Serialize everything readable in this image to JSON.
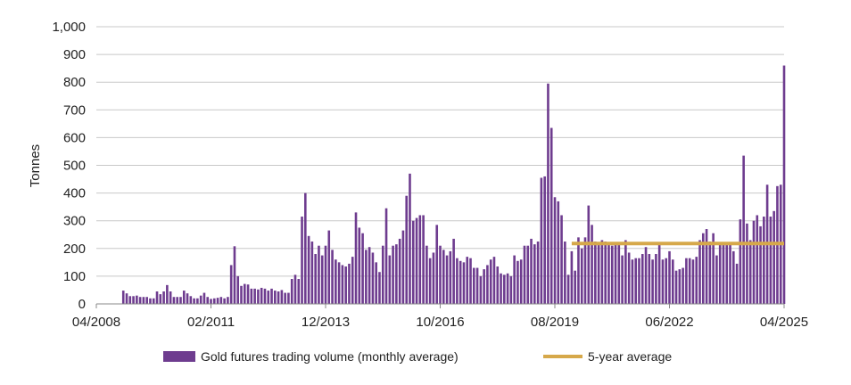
{
  "chart_data": {
    "type": "bar",
    "title": "",
    "xlabel": "",
    "ylabel": "Tonnes",
    "ylim": [
      0,
      1000
    ],
    "yticks": [
      0,
      100,
      200,
      300,
      400,
      500,
      600,
      700,
      800,
      900,
      1000
    ],
    "ytick_labels": [
      "0",
      "100",
      "200",
      "300",
      "400",
      "500",
      "600",
      "700",
      "800",
      "900",
      "1,000"
    ],
    "xtick_labels": [
      "04/2008",
      "02/2011",
      "12/2013",
      "10/2016",
      "08/2019",
      "06/2022",
      "04/2025"
    ],
    "grid": true,
    "legend_position": "bottom",
    "start_month": "12/2008",
    "series": [
      {
        "name": "Gold futures trading volume (monthly average)",
        "type": "bar",
        "color": "#6E3C8F",
        "values": [
          48,
          38,
          28,
          28,
          30,
          25,
          25,
          25,
          20,
          20,
          45,
          35,
          45,
          68,
          45,
          25,
          25,
          25,
          48,
          38,
          28,
          20,
          20,
          30,
          40,
          25,
          18,
          20,
          22,
          25,
          20,
          25,
          140,
          208,
          100,
          65,
          72,
          70,
          55,
          55,
          52,
          58,
          55,
          48,
          55,
          48,
          45,
          50,
          40,
          40,
          90,
          105,
          90,
          315,
          400,
          245,
          225,
          180,
          210,
          175,
          210,
          265,
          195,
          160,
          150,
          140,
          135,
          145,
          170,
          330,
          275,
          255,
          195,
          205,
          185,
          150,
          115,
          210,
          345,
          175,
          210,
          215,
          235,
          265,
          390,
          470,
          300,
          310,
          320,
          320,
          210,
          165,
          185,
          285,
          210,
          195,
          175,
          190,
          235,
          165,
          155,
          150,
          170,
          165,
          130,
          130,
          100,
          125,
          140,
          160,
          170,
          135,
          110,
          105,
          110,
          100,
          175,
          155,
          160,
          210,
          210,
          235,
          215,
          225,
          455,
          460,
          795,
          635,
          385,
          370,
          320,
          225,
          105,
          190,
          120,
          240,
          200,
          240,
          355,
          285,
          225,
          220,
          230,
          225,
          215,
          210,
          215,
          215,
          175,
          230,
          185,
          160,
          165,
          165,
          180,
          205,
          180,
          160,
          180,
          215,
          160,
          165,
          190,
          160,
          120,
          125,
          130,
          165,
          165,
          160,
          170,
          230,
          255,
          270,
          225,
          255,
          175,
          215,
          220,
          220,
          220,
          190,
          145,
          305,
          535,
          290,
          230,
          300,
          320,
          280,
          315,
          430,
          315,
          335,
          425,
          430,
          860
        ]
      },
      {
        "name": "5-year average",
        "type": "line",
        "color": "#D6A84A",
        "value": 218,
        "from": "01/2020",
        "to": "04/2025"
      }
    ]
  }
}
